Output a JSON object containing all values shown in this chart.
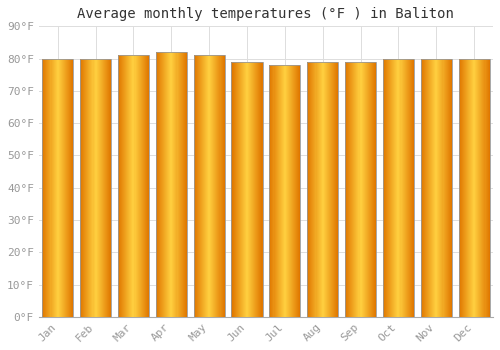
{
  "title": "Average monthly temperatures (°F ) in Baliton",
  "months": [
    "Jan",
    "Feb",
    "Mar",
    "Apr",
    "May",
    "Jun",
    "Jul",
    "Aug",
    "Sep",
    "Oct",
    "Nov",
    "Dec"
  ],
  "values": [
    80,
    80,
    81,
    82,
    81,
    79,
    78,
    79,
    79,
    80,
    80,
    80
  ],
  "bar_color_center": "#FFD040",
  "bar_color_edge": "#E07800",
  "bar_edge_color": "#999999",
  "background_color": "#FFFFFF",
  "grid_color": "#DDDDDD",
  "title_fontsize": 10,
  "tick_fontsize": 8,
  "ylabel_values": [
    0,
    10,
    20,
    30,
    40,
    50,
    60,
    70,
    80,
    90
  ],
  "ylim": [
    0,
    90
  ],
  "font_color": "#999999"
}
